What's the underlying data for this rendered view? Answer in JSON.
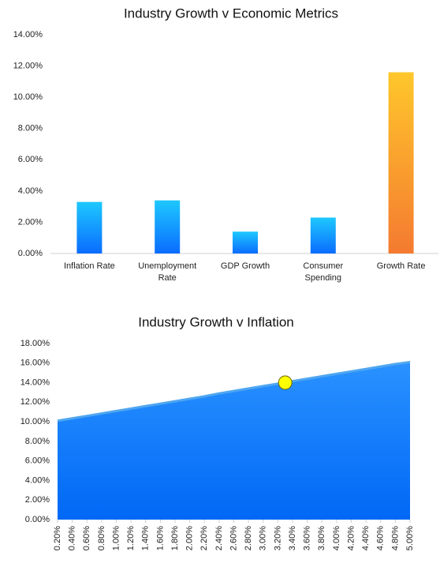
{
  "chart_data": [
    {
      "type": "bar",
      "title": "Industry Growth v Economic Metrics",
      "categories": [
        "Inflation Rate",
        "Unemployment Rate",
        "GDP Growth",
        "Consumer Spending",
        "Growth Rate"
      ],
      "values": [
        3.3,
        3.4,
        1.4,
        2.3,
        11.6
      ],
      "colors": [
        [
          "#1ec8ff",
          "#0a6cff"
        ],
        [
          "#1ec8ff",
          "#0a6cff"
        ],
        [
          "#1ec8ff",
          "#0a6cff"
        ],
        [
          "#1ec8ff",
          "#0a6cff"
        ],
        [
          "#ffc72c",
          "#f47a30"
        ]
      ],
      "ylim": [
        0,
        14
      ],
      "yticks": [
        {
          "value": 0,
          "label": "0.00%"
        },
        {
          "value": 2,
          "label": "2.00%"
        },
        {
          "value": 4,
          "label": "4.00%"
        },
        {
          "value": 6,
          "label": "6.00%"
        },
        {
          "value": 8,
          "label": "8.00%"
        },
        {
          "value": 10,
          "label": "10.00%"
        },
        {
          "value": 12,
          "label": "12.00%"
        },
        {
          "value": 14,
          "label": "14.00%"
        }
      ]
    },
    {
      "type": "area",
      "title": "Industry Growth v Inflation",
      "x": [
        0.2,
        0.4,
        0.6,
        0.8,
        1.0,
        1.2,
        1.4,
        1.6,
        1.8,
        2.0,
        2.2,
        2.4,
        2.6,
        2.8,
        3.0,
        3.2,
        3.4,
        3.6,
        3.8,
        4.0,
        4.2,
        4.4,
        4.6,
        4.8,
        5.0
      ],
      "values": [
        10.1,
        10.35,
        10.6,
        10.85,
        11.1,
        11.35,
        11.6,
        11.85,
        12.1,
        12.35,
        12.6,
        12.9,
        13.15,
        13.4,
        13.65,
        13.9,
        14.15,
        14.4,
        14.65,
        14.9,
        15.15,
        15.4,
        15.65,
        15.9,
        16.1
      ],
      "color": [
        "#2a92ff",
        "#0068f5"
      ],
      "line_color": "#4fa6f0",
      "highlight": {
        "x": 3.3,
        "value": 14.0,
        "color": "#ffff00"
      },
      "xlim": [
        0.2,
        5.0
      ],
      "xticks": [
        {
          "value": 0.2,
          "label": "0.20%"
        },
        {
          "value": 0.4,
          "label": "0.40%"
        },
        {
          "value": 0.6,
          "label": "0.60%"
        },
        {
          "value": 0.8,
          "label": "0.80%"
        },
        {
          "value": 1.0,
          "label": "1.00%"
        },
        {
          "value": 1.2,
          "label": "1.20%"
        },
        {
          "value": 1.4,
          "label": "1.40%"
        },
        {
          "value": 1.6,
          "label": "1.60%"
        },
        {
          "value": 1.8,
          "label": "1.80%"
        },
        {
          "value": 2.0,
          "label": "2.00%"
        },
        {
          "value": 2.2,
          "label": "2.20%"
        },
        {
          "value": 2.4,
          "label": "2.40%"
        },
        {
          "value": 2.6,
          "label": "2.60%"
        },
        {
          "value": 2.8,
          "label": "2.80%"
        },
        {
          "value": 3.0,
          "label": "3.00%"
        },
        {
          "value": 3.2,
          "label": "3.20%"
        },
        {
          "value": 3.4,
          "label": "3.40%"
        },
        {
          "value": 3.6,
          "label": "3.60%"
        },
        {
          "value": 3.8,
          "label": "3.80%"
        },
        {
          "value": 4.0,
          "label": "4.00%"
        },
        {
          "value": 4.2,
          "label": "4.20%"
        },
        {
          "value": 4.4,
          "label": "4.40%"
        },
        {
          "value": 4.6,
          "label": "4.60%"
        },
        {
          "value": 4.8,
          "label": "4.80%"
        },
        {
          "value": 5.0,
          "label": "5.00%"
        }
      ],
      "ylim": [
        0,
        18
      ],
      "yticks": [
        {
          "value": 0,
          "label": "0.00%"
        },
        {
          "value": 2,
          "label": "2.00%"
        },
        {
          "value": 4,
          "label": "4.00%"
        },
        {
          "value": 6,
          "label": "6.00%"
        },
        {
          "value": 8,
          "label": "8.00%"
        },
        {
          "value": 10,
          "label": "10.00%"
        },
        {
          "value": 12,
          "label": "12.00%"
        },
        {
          "value": 14,
          "label": "14.00%"
        },
        {
          "value": 16,
          "label": "16.00%"
        },
        {
          "value": 18,
          "label": "18.00%"
        }
      ]
    }
  ]
}
